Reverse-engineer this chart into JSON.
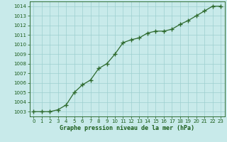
{
  "x": [
    0,
    1,
    2,
    3,
    4,
    5,
    6,
    7,
    8,
    9,
    10,
    11,
    12,
    13,
    14,
    15,
    16,
    17,
    18,
    19,
    20,
    21,
    22,
    23
  ],
  "y": [
    1003.0,
    1003.0,
    1003.0,
    1003.2,
    1003.7,
    1005.0,
    1005.8,
    1006.3,
    1007.5,
    1008.0,
    1009.0,
    1010.2,
    1010.5,
    1010.7,
    1011.2,
    1011.4,
    1011.4,
    1011.6,
    1012.1,
    1012.5,
    1013.0,
    1013.5,
    1014.0,
    1014.0
  ],
  "line_color": "#2d6a2d",
  "marker": "+",
  "marker_color": "#2d6a2d",
  "bg_color": "#c8eaea",
  "grid_color": "#9dcfcf",
  "xlabel": "Graphe pression niveau de la mer (hPa)",
  "xlabel_color": "#1a5c1a",
  "tick_color": "#1a5c1a",
  "ylim": [
    1002.5,
    1014.5
  ],
  "yticks": [
    1003,
    1004,
    1005,
    1006,
    1007,
    1008,
    1009,
    1010,
    1011,
    1012,
    1013,
    1014
  ],
  "xlim": [
    -0.5,
    23.5
  ],
  "xticks": [
    0,
    1,
    2,
    3,
    4,
    5,
    6,
    7,
    8,
    9,
    10,
    11,
    12,
    13,
    14,
    15,
    16,
    17,
    18,
    19,
    20,
    21,
    22,
    23
  ]
}
